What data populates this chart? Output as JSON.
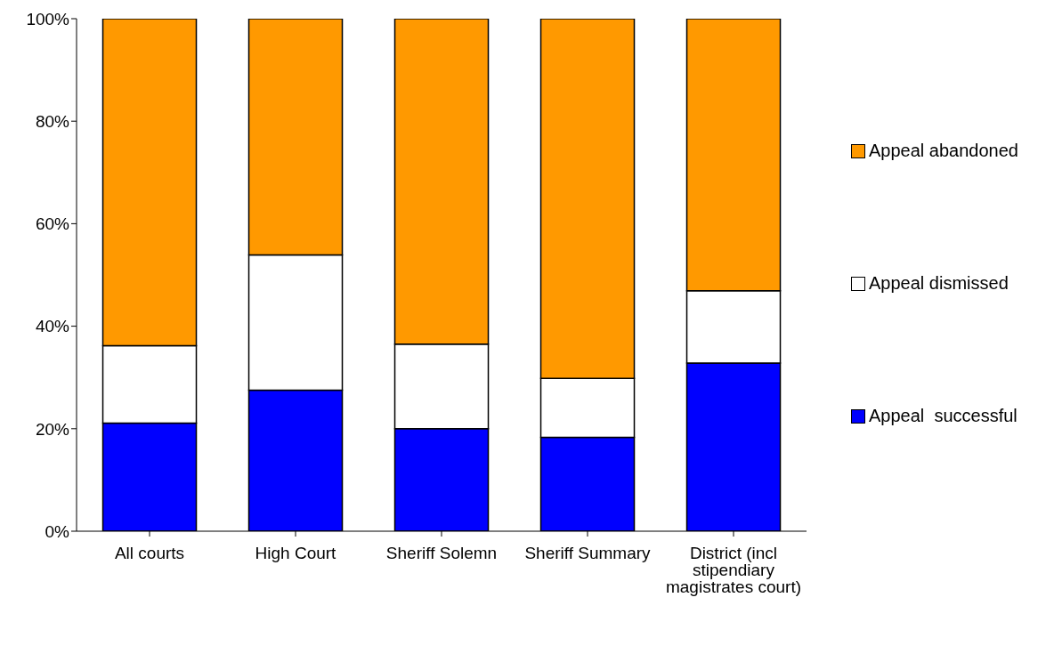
{
  "chart_data": {
    "type": "bar",
    "stacked": true,
    "categories": [
      "All courts",
      "High Court",
      "Sheriff Solemn",
      "Sheriff Summary",
      "District (incl stipendiary magistrates court)"
    ],
    "series": [
      {
        "name": "Appeal  successful",
        "color": "#0000ff",
        "values": [
          21.1,
          27.5,
          20,
          18.3,
          32.8
        ]
      },
      {
        "name": "Appeal dismissed",
        "color": "#ffffff",
        "values": [
          15.1,
          26.4,
          16.5,
          11.5,
          14.1
        ]
      },
      {
        "name": "Appeal abandoned",
        "color": "#ff9900",
        "values": [
          63.8,
          46.1,
          63.5,
          70.2,
          53.1
        ]
      }
    ],
    "ylim": [
      0,
      100
    ],
    "yticks": [
      {
        "value": 0,
        "label": "0%"
      },
      {
        "value": 20,
        "label": "20%"
      },
      {
        "value": 40,
        "label": "40%"
      },
      {
        "value": 60,
        "label": "60%"
      },
      {
        "value": 80,
        "label": "80%"
      },
      {
        "value": 100,
        "label": "100%"
      }
    ],
    "grid": false,
    "legend": "right"
  }
}
